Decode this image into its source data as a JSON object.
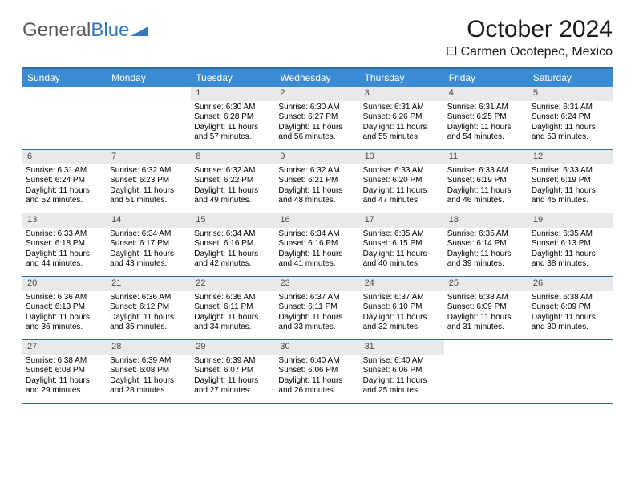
{
  "logo_general": "General",
  "logo_blue": "Blue",
  "logo_color": "#3478c0",
  "title": "October 2024",
  "location": "El Carmen Ocotepec, Mexico",
  "header_bg": "#3b8bd4",
  "border_color": "#2e6da4",
  "daynum_bg": "#e7e9eb",
  "weekdays": [
    "Sunday",
    "Monday",
    "Tuesday",
    "Wednesday",
    "Thursday",
    "Friday",
    "Saturday"
  ],
  "weeks": [
    [
      {
        "num": "",
        "sunrise": "",
        "sunset": "",
        "daylight": ""
      },
      {
        "num": "",
        "sunrise": "",
        "sunset": "",
        "daylight": ""
      },
      {
        "num": "1",
        "sunrise": "Sunrise: 6:30 AM",
        "sunset": "Sunset: 6:28 PM",
        "daylight": "Daylight: 11 hours and 57 minutes."
      },
      {
        "num": "2",
        "sunrise": "Sunrise: 6:30 AM",
        "sunset": "Sunset: 6:27 PM",
        "daylight": "Daylight: 11 hours and 56 minutes."
      },
      {
        "num": "3",
        "sunrise": "Sunrise: 6:31 AM",
        "sunset": "Sunset: 6:26 PM",
        "daylight": "Daylight: 11 hours and 55 minutes."
      },
      {
        "num": "4",
        "sunrise": "Sunrise: 6:31 AM",
        "sunset": "Sunset: 6:25 PM",
        "daylight": "Daylight: 11 hours and 54 minutes."
      },
      {
        "num": "5",
        "sunrise": "Sunrise: 6:31 AM",
        "sunset": "Sunset: 6:24 PM",
        "daylight": "Daylight: 11 hours and 53 minutes."
      }
    ],
    [
      {
        "num": "6",
        "sunrise": "Sunrise: 6:31 AM",
        "sunset": "Sunset: 6:24 PM",
        "daylight": "Daylight: 11 hours and 52 minutes."
      },
      {
        "num": "7",
        "sunrise": "Sunrise: 6:32 AM",
        "sunset": "Sunset: 6:23 PM",
        "daylight": "Daylight: 11 hours and 51 minutes."
      },
      {
        "num": "8",
        "sunrise": "Sunrise: 6:32 AM",
        "sunset": "Sunset: 6:22 PM",
        "daylight": "Daylight: 11 hours and 49 minutes."
      },
      {
        "num": "9",
        "sunrise": "Sunrise: 6:32 AM",
        "sunset": "Sunset: 6:21 PM",
        "daylight": "Daylight: 11 hours and 48 minutes."
      },
      {
        "num": "10",
        "sunrise": "Sunrise: 6:33 AM",
        "sunset": "Sunset: 6:20 PM",
        "daylight": "Daylight: 11 hours and 47 minutes."
      },
      {
        "num": "11",
        "sunrise": "Sunrise: 6:33 AM",
        "sunset": "Sunset: 6:19 PM",
        "daylight": "Daylight: 11 hours and 46 minutes."
      },
      {
        "num": "12",
        "sunrise": "Sunrise: 6:33 AM",
        "sunset": "Sunset: 6:19 PM",
        "daylight": "Daylight: 11 hours and 45 minutes."
      }
    ],
    [
      {
        "num": "13",
        "sunrise": "Sunrise: 6:33 AM",
        "sunset": "Sunset: 6:18 PM",
        "daylight": "Daylight: 11 hours and 44 minutes."
      },
      {
        "num": "14",
        "sunrise": "Sunrise: 6:34 AM",
        "sunset": "Sunset: 6:17 PM",
        "daylight": "Daylight: 11 hours and 43 minutes."
      },
      {
        "num": "15",
        "sunrise": "Sunrise: 6:34 AM",
        "sunset": "Sunset: 6:16 PM",
        "daylight": "Daylight: 11 hours and 42 minutes."
      },
      {
        "num": "16",
        "sunrise": "Sunrise: 6:34 AM",
        "sunset": "Sunset: 6:16 PM",
        "daylight": "Daylight: 11 hours and 41 minutes."
      },
      {
        "num": "17",
        "sunrise": "Sunrise: 6:35 AM",
        "sunset": "Sunset: 6:15 PM",
        "daylight": "Daylight: 11 hours and 40 minutes."
      },
      {
        "num": "18",
        "sunrise": "Sunrise: 6:35 AM",
        "sunset": "Sunset: 6:14 PM",
        "daylight": "Daylight: 11 hours and 39 minutes."
      },
      {
        "num": "19",
        "sunrise": "Sunrise: 6:35 AM",
        "sunset": "Sunset: 6:13 PM",
        "daylight": "Daylight: 11 hours and 38 minutes."
      }
    ],
    [
      {
        "num": "20",
        "sunrise": "Sunrise: 6:36 AM",
        "sunset": "Sunset: 6:13 PM",
        "daylight": "Daylight: 11 hours and 36 minutes."
      },
      {
        "num": "21",
        "sunrise": "Sunrise: 6:36 AM",
        "sunset": "Sunset: 6:12 PM",
        "daylight": "Daylight: 11 hours and 35 minutes."
      },
      {
        "num": "22",
        "sunrise": "Sunrise: 6:36 AM",
        "sunset": "Sunset: 6:11 PM",
        "daylight": "Daylight: 11 hours and 34 minutes."
      },
      {
        "num": "23",
        "sunrise": "Sunrise: 6:37 AM",
        "sunset": "Sunset: 6:11 PM",
        "daylight": "Daylight: 11 hours and 33 minutes."
      },
      {
        "num": "24",
        "sunrise": "Sunrise: 6:37 AM",
        "sunset": "Sunset: 6:10 PM",
        "daylight": "Daylight: 11 hours and 32 minutes."
      },
      {
        "num": "25",
        "sunrise": "Sunrise: 6:38 AM",
        "sunset": "Sunset: 6:09 PM",
        "daylight": "Daylight: 11 hours and 31 minutes."
      },
      {
        "num": "26",
        "sunrise": "Sunrise: 6:38 AM",
        "sunset": "Sunset: 6:09 PM",
        "daylight": "Daylight: 11 hours and 30 minutes."
      }
    ],
    [
      {
        "num": "27",
        "sunrise": "Sunrise: 6:38 AM",
        "sunset": "Sunset: 6:08 PM",
        "daylight": "Daylight: 11 hours and 29 minutes."
      },
      {
        "num": "28",
        "sunrise": "Sunrise: 6:39 AM",
        "sunset": "Sunset: 6:08 PM",
        "daylight": "Daylight: 11 hours and 28 minutes."
      },
      {
        "num": "29",
        "sunrise": "Sunrise: 6:39 AM",
        "sunset": "Sunset: 6:07 PM",
        "daylight": "Daylight: 11 hours and 27 minutes."
      },
      {
        "num": "30",
        "sunrise": "Sunrise: 6:40 AM",
        "sunset": "Sunset: 6:06 PM",
        "daylight": "Daylight: 11 hours and 26 minutes."
      },
      {
        "num": "31",
        "sunrise": "Sunrise: 6:40 AM",
        "sunset": "Sunset: 6:06 PM",
        "daylight": "Daylight: 11 hours and 25 minutes."
      },
      {
        "num": "",
        "sunrise": "",
        "sunset": "",
        "daylight": ""
      },
      {
        "num": "",
        "sunrise": "",
        "sunset": "",
        "daylight": ""
      }
    ]
  ]
}
